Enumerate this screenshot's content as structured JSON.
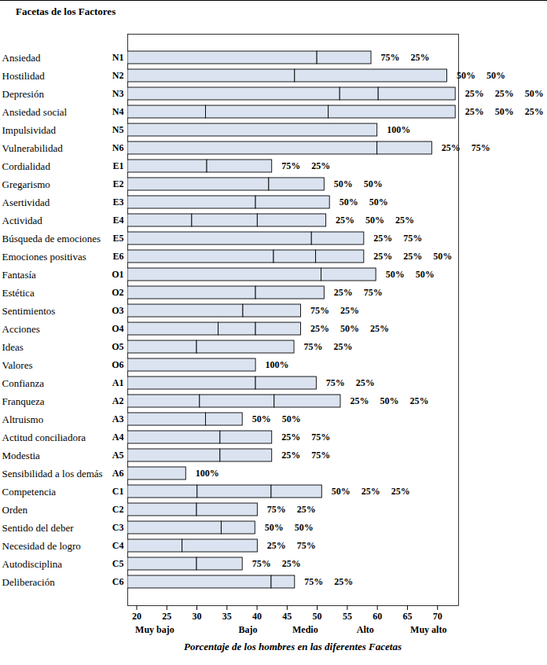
{
  "chart_data": {
    "type": "bar",
    "orientation": "horizontal",
    "title": "Facetas de los Factores",
    "x_label": "Porcentaje de los hombres en las diferentes Facetas",
    "categories": [
      "Ansiedad",
      "Hostilidad",
      "Depresión",
      "Ansiedad social",
      "Impulsividad",
      "Vulnerabilidad",
      "Cordialidad",
      "Gregarismo",
      "Asertividad",
      "Actividad",
      "Búsqueda de emociones",
      "Emociones positivas",
      "Fantasía",
      "Estética",
      "Sentimientos",
      "Acciones",
      "Ideas",
      "Valores",
      "Confianza",
      "Franqueza",
      "Altruismo",
      "Actitud conciliadora",
      "Modestia",
      "Sensibilidad a los demás",
      "Competencia",
      "Orden",
      "Sentido del deber",
      "Necesidad de logro",
      "Autodisciplina",
      "Deliberación"
    ],
    "codes": [
      "N1",
      "N2",
      "N3",
      "N4",
      "N5",
      "N6",
      "E1",
      "E2",
      "E3",
      "E4",
      "E5",
      "E6",
      "O1",
      "O2",
      "O3",
      "O4",
      "O5",
      "O6",
      "A1",
      "A2",
      "A3",
      "A4",
      "A5",
      "A6",
      "C1",
      "C2",
      "C3",
      "C4",
      "C5",
      "C6"
    ],
    "boundaries": [
      [
        50,
        59
      ],
      [
        46.3,
        71.6
      ],
      [
        53.8,
        60.2,
        73
      ],
      [
        31.5,
        51.9,
        73
      ],
      [
        60
      ],
      [
        60,
        69.1
      ],
      [
        31.7,
        42.5
      ],
      [
        42,
        51.2
      ],
      [
        39.8,
        52.1
      ],
      [
        29.2,
        40.1,
        51.5
      ],
      [
        49.1,
        57.8
      ],
      [
        42.8,
        49.8,
        57.8
      ],
      [
        50.7,
        59.8
      ],
      [
        39.8,
        51.2
      ],
      [
        37.7,
        47.3
      ],
      [
        33.6,
        39.8,
        47.3
      ],
      [
        30,
        46.2
      ],
      [
        39.8
      ],
      [
        39.8,
        49.9
      ],
      [
        30.5,
        42.9,
        53.9
      ],
      [
        31.5,
        37.6
      ],
      [
        33.9,
        42.5
      ],
      [
        33.9,
        42.5
      ],
      [
        28.2
      ],
      [
        30.1,
        42.4,
        50.8
      ],
      [
        30,
        40.1
      ],
      [
        34.1,
        39.7
      ],
      [
        27.6,
        40.1
      ],
      [
        30,
        37.6
      ],
      [
        42.4,
        46.3
      ]
    ],
    "percent_labels": [
      [
        "75%",
        "25%"
      ],
      [
        "50%",
        "50%"
      ],
      [
        "25%",
        "25%",
        "50%"
      ],
      [
        "25%",
        "50%",
        "25%"
      ],
      [
        "100%"
      ],
      [
        "25%",
        "75%"
      ],
      [
        "75%",
        "25%"
      ],
      [
        "50%",
        "50%"
      ],
      [
        "50%",
        "50%"
      ],
      [
        "25%",
        "50%",
        "25%"
      ],
      [
        "25%",
        "75%"
      ],
      [
        "25%",
        "25%",
        "50%"
      ],
      [
        "50%",
        "50%"
      ],
      [
        "25%",
        "75%"
      ],
      [
        "75%",
        "25%"
      ],
      [
        "25%",
        "50%",
        "25%"
      ],
      [
        "75%",
        "25%"
      ],
      [
        "100%"
      ],
      [
        "75%",
        "25%"
      ],
      [
        "25%",
        "50%",
        "25%"
      ],
      [
        "50%",
        "50%"
      ],
      [
        "25%",
        "75%"
      ],
      [
        "25%",
        "75%"
      ],
      [
        "100%"
      ],
      [
        "50%",
        "25%",
        "25%"
      ],
      [
        "75%",
        "25%"
      ],
      [
        "50%",
        "50%"
      ],
      [
        "25%",
        "75%"
      ],
      [
        "75%",
        "25%"
      ],
      [
        "75%",
        "25%"
      ]
    ],
    "xlim": [
      18.5,
      73.5
    ],
    "xticks": [
      20,
      25,
      30,
      35,
      40,
      45,
      50,
      55,
      60,
      65,
      70
    ],
    "x_band_labels": [
      {
        "value": 23,
        "label": "Muy bajo"
      },
      {
        "value": 38.5,
        "label": "Bajo"
      },
      {
        "value": 48,
        "label": "Medio"
      },
      {
        "value": 58,
        "label": "Alto"
      },
      {
        "value": 68.5,
        "label": "Muy alto"
      }
    ],
    "color": "#dbe3f1"
  }
}
